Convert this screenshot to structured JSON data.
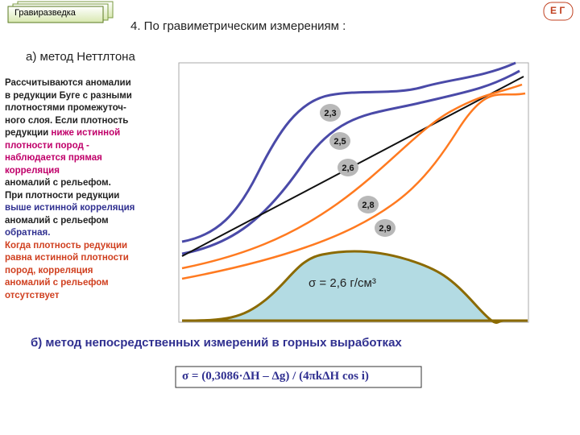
{
  "tab": "Гравиразведка",
  "badge": "Е Г",
  "title": "4. По гравиметрическим измерениям :",
  "section_a": "а) метод Неттлтона",
  "description": {
    "lines": [
      [
        "Рассчитываются аномалии"
      ],
      [
        "в редукции Буге с разными"
      ],
      [
        "плотностями промежуточ-"
      ],
      [
        "ного слоя. Если плотность"
      ],
      [
        "редукции ",
        "ниже истинной"
      ],
      [
        "плотности пород -"
      ],
      [
        "наблюдается прямая"
      ],
      [
        "корреляция"
      ],
      [
        "аномалий с рельефом."
      ],
      [
        "При плотности редукции"
      ],
      [
        "выше истинной корреляция"
      ],
      [
        "аномалий с рельефом"
      ],
      [
        "обратная."
      ],
      [
        "Когда плотность редукции"
      ],
      [
        "равна истинной плотности"
      ],
      [
        "пород, корреляция"
      ],
      [
        "аномалий с рельефом"
      ],
      [
        "отсутствует"
      ]
    ]
  },
  "curve_labels": [
    "2,3",
    "2,5",
    "2,6",
    "2,8",
    "2,9"
  ],
  "density_label": "σ = 2,6 г/см³",
  "section_b": "б) метод непосредственных измерений в горных выработках",
  "formula": "σ = (0,3086·ΔH – Δg) / (4πkΔH cos i)"
}
